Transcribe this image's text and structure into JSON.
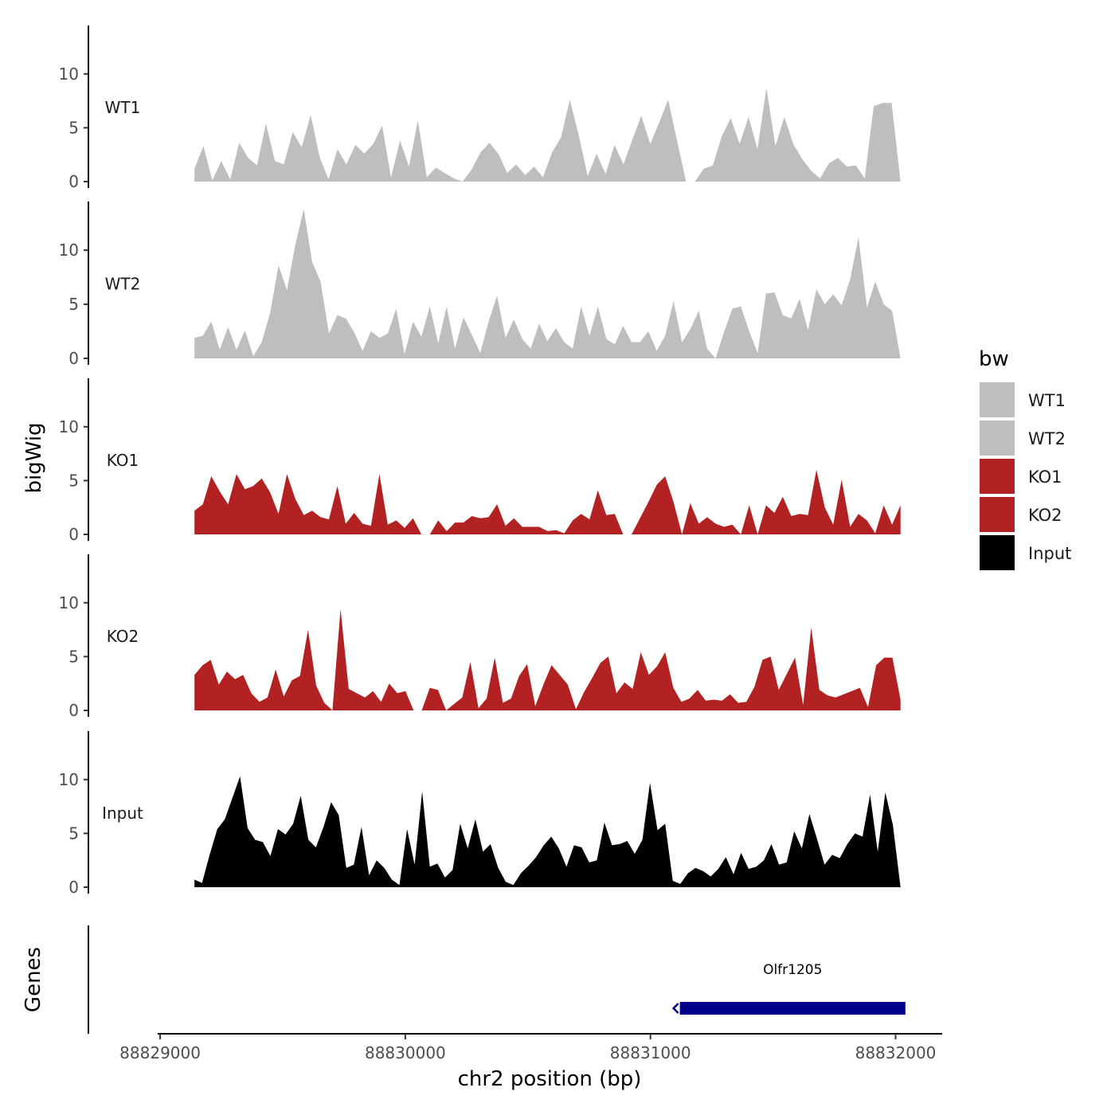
{
  "chart_data": {
    "type": "area",
    "title": "",
    "xlabel": "chr2 position (bp)",
    "ylabel": "bigWig",
    "genes_label": "Genes",
    "xlim": [
      88828990,
      88832190
    ],
    "x_ticks": [
      {
        "value": 88829000,
        "label": "88829000"
      },
      {
        "value": 88830000,
        "label": "88830000"
      },
      {
        "value": 88831000,
        "label": "88831000"
      },
      {
        "value": 88832000,
        "label": "88832000"
      }
    ],
    "ylim": [
      0,
      14.5
    ],
    "y_ticks": [
      {
        "value": 0,
        "label": "0"
      },
      {
        "value": 5,
        "label": "5"
      },
      {
        "value": 10,
        "label": "10"
      }
    ],
    "x_start": 88829140,
    "x_end": 88832020,
    "legend": {
      "title": "bw",
      "position": "right",
      "entries": [
        {
          "name": "WT1",
          "color": "#bebebe"
        },
        {
          "name": "WT2",
          "color": "#bebebe"
        },
        {
          "name": "KO1",
          "color": "#b22222"
        },
        {
          "name": "KO2",
          "color": "#b22222"
        },
        {
          "name": "Input",
          "color": "#000000"
        }
      ]
    },
    "series": [
      {
        "name": "WT1",
        "color": "#bebebe",
        "values": [
          1.2,
          3.3,
          0.1,
          1.9,
          0.2,
          3.6,
          2.2,
          1.5,
          5.4,
          1.9,
          1.6,
          4.6,
          3.2,
          6.2,
          2.3,
          0.2,
          3.0,
          1.6,
          3.4,
          2.6,
          3.5,
          5.2,
          0.4,
          3.8,
          1.4,
          5.7,
          0.4,
          1.3,
          0.8,
          0.3,
          0.0,
          1.1,
          2.7,
          3.6,
          2.6,
          0.8,
          1.6,
          0.6,
          1.4,
          0.4,
          2.7,
          4.1,
          7.6,
          4.3,
          0.5,
          2.6,
          0.7,
          3.4,
          1.6,
          3.9,
          6.1,
          3.5,
          5.5,
          7.6,
          3.8,
          0.0,
          0.0,
          1.2,
          1.5,
          4.2,
          5.9,
          3.5,
          6.0,
          3.0,
          8.7,
          3.3,
          6.0,
          3.5,
          2.1,
          1.0,
          0.3,
          1.7,
          2.2,
          1.4,
          1.5,
          0.3,
          7.0,
          7.3,
          7.3,
          0.0
        ]
      },
      {
        "name": "WT2",
        "color": "#bebebe",
        "values": [
          1.9,
          2.1,
          3.4,
          0.8,
          2.9,
          0.8,
          2.6,
          0.2,
          1.5,
          4.2,
          8.6,
          6.3,
          10.5,
          13.8,
          8.9,
          7.1,
          2.3,
          4.0,
          3.7,
          2.4,
          0.7,
          2.5,
          1.9,
          2.3,
          4.6,
          0.4,
          3.4,
          2.0,
          4.8,
          1.4,
          4.8,
          0.9,
          3.8,
          2.2,
          0.5,
          3.4,
          5.8,
          1.9,
          3.6,
          1.8,
          0.9,
          3.2,
          1.6,
          2.8,
          1.5,
          0.9,
          4.8,
          2.1,
          4.8,
          1.8,
          1.3,
          3.0,
          1.5,
          1.5,
          2.5,
          0.7,
          2.1,
          5.3,
          1.5,
          2.7,
          4.4,
          0.9,
          0.0,
          2.4,
          4.6,
          4.8,
          2.5,
          0.5,
          6.0,
          6.1,
          4.0,
          3.7,
          5.5,
          2.6,
          6.4,
          5.0,
          5.9,
          4.9,
          7.3,
          11.2,
          4.7,
          7.1,
          5.0,
          4.4,
          0.0
        ]
      },
      {
        "name": "KO1",
        "color": "#b22222",
        "values": [
          2.2,
          2.8,
          5.4,
          4.0,
          2.8,
          5.6,
          4.2,
          4.5,
          5.2,
          3.9,
          1.9,
          5.6,
          3.3,
          1.8,
          2.2,
          1.6,
          1.4,
          4.5,
          1.0,
          2.0,
          1.0,
          0.8,
          5.6,
          0.9,
          1.3,
          0.6,
          1.5,
          0.0,
          0.0,
          1.3,
          0.3,
          1.1,
          1.1,
          1.7,
          1.5,
          1.6,
          2.8,
          0.8,
          1.5,
          0.7,
          0.7,
          0.7,
          0.3,
          0.4,
          0.1,
          1.3,
          1.9,
          1.4,
          4.1,
          1.8,
          1.9,
          0.0,
          0.0,
          1.5,
          3.0,
          4.6,
          5.4,
          3.0,
          0.0,
          2.9,
          1.0,
          1.6,
          1.0,
          0.7,
          0.9,
          0.0,
          2.7,
          0.0,
          2.7,
          2.0,
          3.5,
          1.7,
          1.9,
          1.8,
          6.0,
          2.5,
          0.9,
          5.1,
          0.7,
          1.9,
          1.3,
          0.1,
          2.7,
          0.9,
          2.7
        ]
      },
      {
        "name": "KO2",
        "color": "#b22222",
        "values": [
          3.3,
          4.2,
          4.7,
          2.4,
          3.6,
          2.9,
          3.3,
          1.6,
          0.8,
          1.2,
          3.8,
          1.3,
          2.8,
          3.2,
          7.5,
          2.3,
          0.7,
          0.0,
          9.4,
          2.0,
          1.6,
          1.2,
          1.8,
          0.8,
          2.5,
          1.6,
          1.8,
          0.0,
          0.0,
          2.1,
          1.9,
          0.0,
          0.6,
          1.2,
          4.5,
          0.2,
          1.1,
          4.9,
          0.7,
          1.1,
          3.2,
          4.3,
          0.4,
          2.4,
          4.2,
          3.3,
          2.4,
          0.1,
          1.7,
          3.0,
          4.4,
          5.0,
          1.6,
          2.6,
          2.0,
          5.4,
          3.3,
          4.1,
          5.4,
          2.1,
          0.8,
          1.1,
          1.9,
          0.9,
          1.0,
          0.9,
          1.5,
          0.7,
          0.8,
          2.2,
          4.7,
          5.0,
          1.9,
          3.4,
          4.9,
          0.5,
          7.7,
          1.9,
          1.4,
          1.2,
          1.5,
          1.8,
          2.1,
          0.3,
          4.2,
          4.9,
          4.9,
          1.0
        ]
      },
      {
        "name": "Input",
        "color": "#000000",
        "values": [
          0.7,
          0.4,
          3.0,
          5.4,
          6.3,
          8.3,
          10.3,
          5.5,
          4.4,
          4.2,
          2.9,
          5.4,
          4.9,
          5.9,
          8.5,
          4.4,
          3.7,
          5.6,
          7.9,
          6.7,
          1.8,
          2.1,
          5.6,
          1.1,
          2.5,
          1.8,
          0.7,
          0.2,
          5.4,
          2.1,
          8.9,
          1.9,
          2.2,
          0.9,
          1.6,
          5.9,
          3.6,
          6.3,
          3.3,
          4.0,
          1.8,
          0.5,
          0.2,
          1.3,
          2.0,
          2.8,
          3.9,
          4.7,
          3.6,
          1.9,
          3.9,
          3.7,
          2.3,
          2.5,
          6.0,
          3.9,
          4.0,
          4.3,
          3.1,
          4.4,
          9.7,
          5.3,
          5.9,
          0.6,
          0.3,
          1.3,
          1.8,
          1.5,
          1.0,
          1.7,
          2.8,
          1.2,
          3.2,
          1.7,
          1.9,
          2.5,
          4.0,
          2.1,
          2.3,
          5.2,
          3.6,
          6.8,
          4.5,
          2.1,
          3.0,
          2.7,
          4.0,
          5.0,
          4.7,
          8.6,
          3.3,
          8.8,
          5.8,
          0.0
        ]
      }
    ],
    "genes": [
      {
        "name": "Olfr1205",
        "start": 88831120,
        "end": 88832040,
        "strand": "-",
        "color": "#00008b"
      }
    ]
  }
}
